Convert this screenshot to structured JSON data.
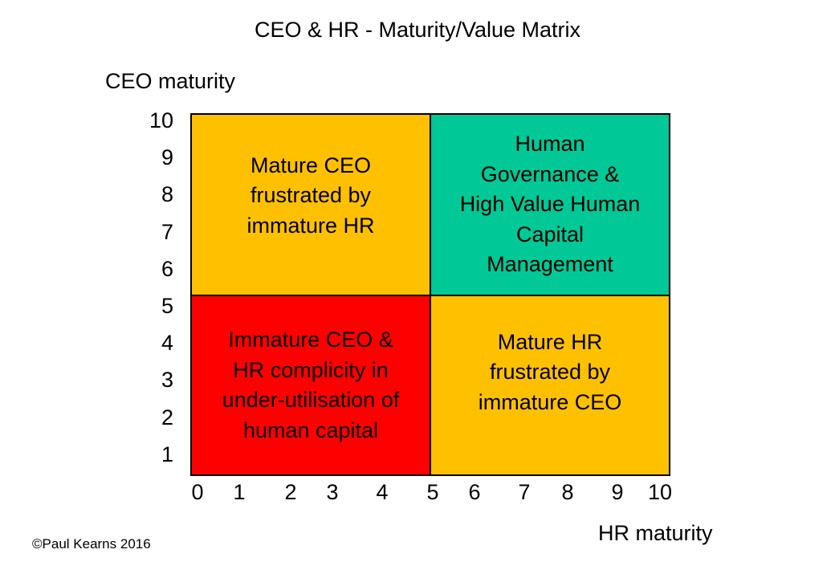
{
  "title": "CEO & HR - Maturity/Value Matrix",
  "y_axis": {
    "label": "CEO maturity",
    "ticks": [
      "10",
      "9",
      "8",
      "7",
      "6",
      "5",
      "4",
      "3",
      "2",
      "1"
    ]
  },
  "x_axis": {
    "label": "HR maturity",
    "ticks": [
      "0",
      "1",
      "2",
      "3",
      "4",
      "5",
      "6",
      "7",
      "8",
      "9",
      "10"
    ]
  },
  "quadrants": {
    "top_left": {
      "lines": [
        "Mature CEO",
        "frustrated by",
        "immature HR"
      ],
      "color": "#FFC000"
    },
    "top_right": {
      "lines": [
        "Human",
        "Governance &",
        "High Value Human",
        "Capital",
        "Management"
      ],
      "color": "#00C896"
    },
    "bottom_left": {
      "lines": [
        "Immature CEO &",
        "HR complicity in",
        "under-utilisation of",
        "human capital"
      ],
      "color": "#FF0000"
    },
    "bottom_right": {
      "lines": [
        "Mature HR",
        "frustrated by",
        "immature CEO"
      ],
      "color": "#FFC000"
    }
  },
  "credit": "©Paul Kearns 2016"
}
